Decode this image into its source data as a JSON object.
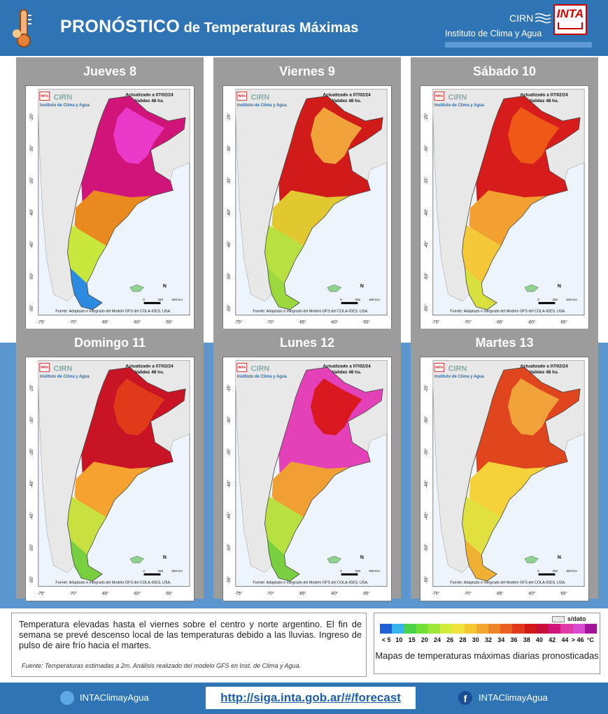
{
  "header": {
    "title_big": "PRONÓSTICO",
    "title_small": " de Temperaturas  Máximas",
    "org_short": "CIRN",
    "org_long": "Instituto de Clima y Agua",
    "logo_text": "INTA"
  },
  "map_common": {
    "updated": "Actualizado a 07/02/24",
    "validity": "Validez 48 hs.",
    "cirn": "CIRN",
    "instituto": "Instituto de Clima y Agua",
    "inta": "INTA",
    "source": "Fuente: Adaptado e integrado del Modelo GFS del COLA-IGES, USA.",
    "lat_labels": [
      "-25°",
      "-30°",
      "-35°",
      "-40°",
      "-45°",
      "-50°",
      "-55°"
    ],
    "lon_labels": [
      "-75°",
      "-70°",
      "-65°",
      "-60°",
      "-55°"
    ],
    "scale_labels": [
      "0",
      "250",
      "500 Km"
    ],
    "north": "N"
  },
  "panels": [
    {
      "day": "Jueves 8",
      "palette": [
        "#d1147a",
        "#ea39c8",
        "#ea8a1e",
        "#c8e63c",
        "#2c8be0"
      ]
    },
    {
      "day": "Viernes 9",
      "palette": [
        "#d11a1a",
        "#f2a23a",
        "#e2c830",
        "#b8e040",
        "#9ad83e"
      ]
    },
    {
      "day": "Sábado 10",
      "palette": [
        "#d71c1c",
        "#ee5a16",
        "#f2a030",
        "#f5c83a",
        "#d8e040"
      ]
    },
    {
      "day": "Domingo 11",
      "palette": [
        "#c91426",
        "#df3a1a",
        "#f5a230",
        "#c8e040",
        "#78d040"
      ]
    },
    {
      "day": "Lunes 12",
      "palette": [
        "#e440b8",
        "#d9191f",
        "#f0a032",
        "#b8e040",
        "#78d040"
      ]
    },
    {
      "day": "Martes 13",
      "palette": [
        "#e0461e",
        "#f2a23a",
        "#f5d23a",
        "#e0e040",
        "#f0b034"
      ]
    }
  ],
  "description": {
    "text": "Temperatura elevadas hasta el viernes sobre el centro y norte argentino. El fin de semana se prevé descenso local de las temperaturas debido a las lluvias. Ingreso de pulso de aire frío hacia el martes.",
    "note": "Fuente: Temperaturas estimadas a 2m. Análisis realizado del modelo GFS en Inst. de Clima y Agua."
  },
  "legend": {
    "no_data": "s/dato",
    "colors": [
      "#1e5fd8",
      "#35b4ee",
      "#4ad24a",
      "#70e034",
      "#a0e63a",
      "#d2ec3c",
      "#f2e23a",
      "#f5c832",
      "#f2a82e",
      "#ee842a",
      "#ea6020",
      "#e2381a",
      "#d41818",
      "#c80f3c",
      "#d1147a",
      "#e03aa8",
      "#d94cd0",
      "#a2149a"
    ],
    "ticks": [
      "< 5",
      "10",
      "15",
      "20",
      "24",
      "26",
      "28",
      "30",
      "32",
      "34",
      "36",
      "38",
      "40",
      "42",
      "44",
      "> 46",
      "°C"
    ],
    "caption": "Mapas de temperaturas máximas diarias pronosticadas"
  },
  "footer": {
    "twitter": "INTAClimayAgua",
    "url": "http://siga.inta.gob.ar/#/forecast",
    "facebook": "INTAClimayAgua",
    "fb_glyph": "f"
  }
}
